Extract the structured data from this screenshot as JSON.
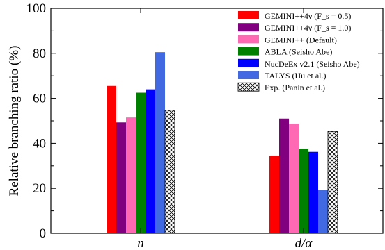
{
  "chart_data": {
    "type": "bar",
    "ylabel": "Relative branching ratio (%)",
    "ylim": [
      0,
      100
    ],
    "yticks": [
      0,
      20,
      40,
      60,
      80,
      100
    ],
    "ytick_labels": [
      "0",
      "20",
      "40",
      "60",
      "80",
      "100"
    ],
    "categories": [
      "n",
      "d/α"
    ],
    "legend_position": "top-right",
    "series": [
      {
        "name": "GEMINI++4ν (F_s = 0.5)",
        "color": "#ff0000",
        "values": [
          65.5,
          34.5
        ]
      },
      {
        "name": "GEMINI++4ν (F_s = 1.0)",
        "color": "#800080",
        "values": [
          49.3,
          51.0
        ]
      },
      {
        "name": "GEMINI++ (Default)",
        "color": "#ff69b4",
        "values": [
          51.5,
          48.7
        ]
      },
      {
        "name": "ABLA (Seisho Abe)",
        "color": "#008000",
        "values": [
          62.5,
          37.6
        ]
      },
      {
        "name": "NucDeEx v2.1 (Seisho Abe)",
        "color": "#0000ff",
        "values": [
          64.0,
          36.2
        ]
      },
      {
        "name": "TALYS (Hu et al.)",
        "color": "#4169e1",
        "values": [
          80.5,
          19.4
        ]
      },
      {
        "name": "Exp. (Panin et al.)",
        "color": "#ffffff",
        "pattern": "crosshatch",
        "values": [
          54.7,
          45.3
        ]
      }
    ]
  }
}
